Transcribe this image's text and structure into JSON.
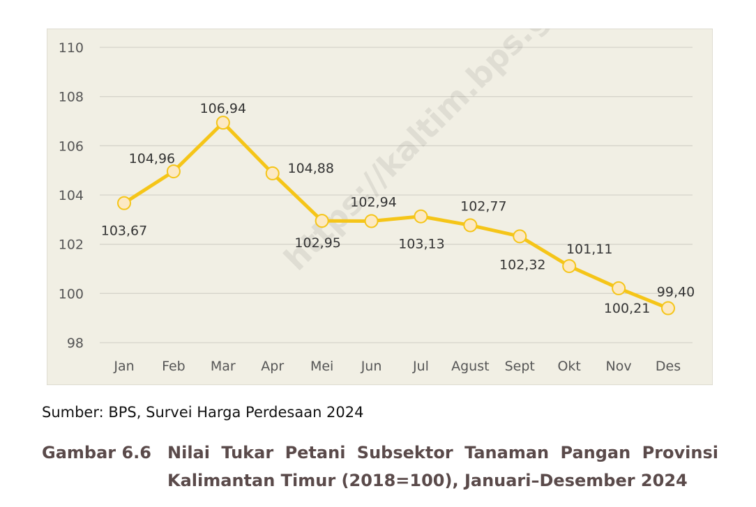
{
  "chart_data": {
    "type": "line",
    "categories": [
      "Jan",
      "Feb",
      "Mar",
      "Apr",
      "Mei",
      "Jun",
      "Jul",
      "Agust",
      "Sept",
      "Okt",
      "Nov",
      "Des"
    ],
    "series": [
      {
        "values": [
          103.67,
          104.96,
          106.94,
          104.88,
          102.95,
          102.94,
          103.13,
          102.77,
          102.32,
          101.11,
          100.21,
          99.4
        ],
        "labels": [
          "103,67",
          "104,96",
          "106,94",
          "104,88",
          "102,95",
          "102,94",
          "103,13",
          "102,77",
          "102,32",
          "101,11",
          "100,21",
          "99,40"
        ],
        "color": "#F5C518"
      }
    ],
    "y_ticks": [
      "98",
      "100",
      "102",
      "104",
      "106",
      "108",
      "110"
    ],
    "ylim": [
      98,
      110
    ],
    "grid": true,
    "legend": "none",
    "plot_background": "#F1EFE4",
    "marker_fill": "#FCE9C4"
  },
  "watermark": "https://kaltim.bps.go.id",
  "source_note": "Sumber: BPS, Survei Harga Perdesaan 2024",
  "caption": {
    "label": "Gambar 6.6",
    "line1": "Nilai Tukar Petani Subsektor Tanaman Pangan Provinsi",
    "line2": "Kalimantan Timur (2018=100), Januari–Desember 2024"
  }
}
